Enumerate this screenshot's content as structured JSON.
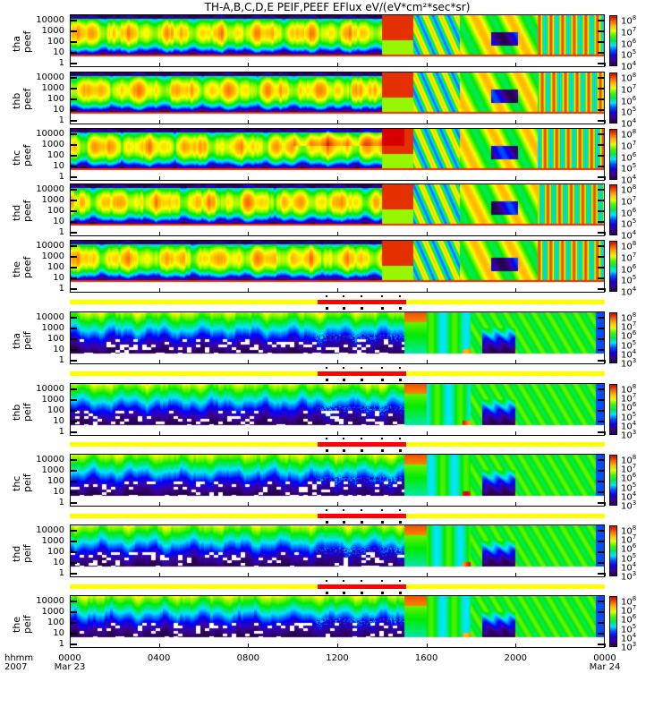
{
  "chart_data": {
    "type": "heatmap",
    "title": "TH-A,B,C,D,E  PEIF,PEEF  EFlux  eV/(eV*cm²*sec*sr)",
    "xlabel": "hhmm",
    "x_year": "2007",
    "x_ticks": [
      {
        "label": "0000",
        "sub": "Mar 23",
        "hour": 0
      },
      {
        "label": "0400",
        "sub": "",
        "hour": 4
      },
      {
        "label": "0800",
        "sub": "",
        "hour": 8
      },
      {
        "label": "1200",
        "sub": "",
        "hour": 12
      },
      {
        "label": "1600",
        "sub": "",
        "hour": 16
      },
      {
        "label": "2000",
        "sub": "",
        "hour": 20
      },
      {
        "label": "0000",
        "sub": "Mar 24",
        "hour": 24
      }
    ],
    "x_range_hours": [
      0,
      24
    ],
    "y_ticks": [
      "1",
      "10",
      "100",
      "1000",
      "10000"
    ],
    "y_scale": "log",
    "panels": [
      {
        "probe": "tha",
        "product": "peef",
        "cbar_exps": [
          "8",
          "7",
          "6",
          "5",
          "4"
        ],
        "clim_log": [
          4,
          8
        ],
        "kind": "e"
      },
      {
        "probe": "thb",
        "product": "peef",
        "cbar_exps": [
          "8",
          "7",
          "6",
          "5",
          "4"
        ],
        "clim_log": [
          4,
          8
        ],
        "kind": "e"
      },
      {
        "probe": "thc",
        "product": "peef",
        "cbar_exps": [
          "8",
          "7",
          "6",
          "5",
          "4"
        ],
        "clim_log": [
          4,
          8
        ],
        "kind": "e"
      },
      {
        "probe": "thd",
        "product": "peef",
        "cbar_exps": [
          "8",
          "7",
          "6",
          "5",
          "4"
        ],
        "clim_log": [
          4,
          8
        ],
        "kind": "e"
      },
      {
        "probe": "the",
        "product": "peef",
        "cbar_exps": [
          "8",
          "7",
          "6",
          "5",
          "4"
        ],
        "clim_log": [
          4,
          8
        ],
        "kind": "e"
      },
      {
        "probe": "tha",
        "product": "peif",
        "cbar_exps": [
          "8",
          "7",
          "6",
          "5",
          "4",
          "3"
        ],
        "clim_log": [
          3,
          8
        ],
        "kind": "i"
      },
      {
        "probe": "thb",
        "product": "peif",
        "cbar_exps": [
          "8",
          "7",
          "6",
          "5",
          "4",
          "3"
        ],
        "clim_log": [
          3,
          8
        ],
        "kind": "i"
      },
      {
        "probe": "thc",
        "product": "peif",
        "cbar_exps": [
          "8",
          "7",
          "6",
          "5",
          "4",
          "3"
        ],
        "clim_log": [
          3,
          8
        ],
        "kind": "i"
      },
      {
        "probe": "thd",
        "product": "peif",
        "cbar_exps": [
          "8",
          "7",
          "6",
          "5",
          "4",
          "3"
        ],
        "clim_log": [
          3,
          8
        ],
        "kind": "i"
      },
      {
        "probe": "the",
        "product": "peif",
        "cbar_exps": [
          "8",
          "7",
          "6",
          "5",
          "4",
          "3"
        ],
        "clim_log": [
          3,
          8
        ],
        "kind": "i"
      }
    ],
    "mode_bar": {
      "base_color": "#ffff00",
      "burst_color": "#ff0000",
      "burst_hours": [
        11.1,
        15.1
      ],
      "marker_hours": [
        11.5,
        12.3,
        13.1,
        14.0,
        14.8
      ]
    }
  }
}
